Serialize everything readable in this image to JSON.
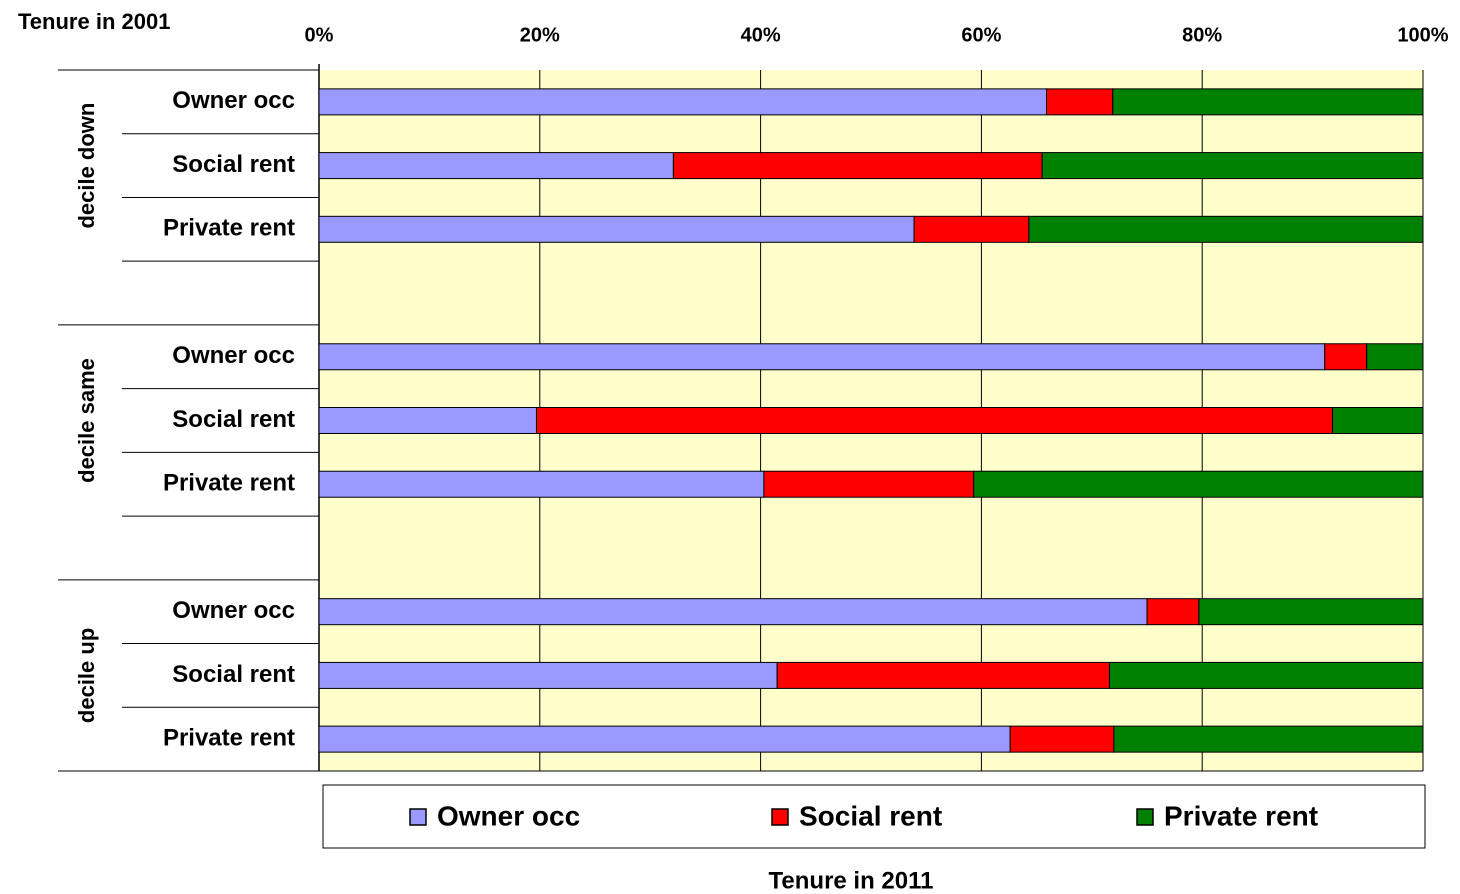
{
  "chart_data": {
    "type": "stacked-bar-horizontal",
    "y_axis_title": "Tenure in 2001",
    "x_axis_title": "Tenure in 2011",
    "groups": [
      "decile down",
      "decile same",
      "decile up"
    ],
    "categories": [
      "Owner occ",
      "Social rent",
      "Private rent",
      null,
      "Owner occ",
      "Social rent",
      "Private rent",
      null,
      "Owner occ",
      "Social rent",
      "Private rent"
    ],
    "series": [
      {
        "name": "Owner occ",
        "color": "#9999ff",
        "values": [
          65.9,
          32.1,
          53.9,
          null,
          91.1,
          19.7,
          40.3,
          null,
          75.0,
          41.5,
          62.6
        ]
      },
      {
        "name": "Social rent",
        "color": "#ff0000",
        "values": [
          6.0,
          33.4,
          10.4,
          null,
          3.8,
          72.1,
          19.0,
          null,
          4.7,
          30.1,
          9.4
        ]
      },
      {
        "name": "Private rent",
        "color": "#008000",
        "values": [
          28.1,
          34.5,
          35.7,
          null,
          5.1,
          8.2,
          40.7,
          null,
          20.3,
          28.4,
          28.0
        ]
      }
    ],
    "xlim": [
      0,
      100
    ],
    "xticks": [
      {
        "value": 0,
        "label": "0%"
      },
      {
        "value": 20,
        "label": "20%"
      },
      {
        "value": 40,
        "label": "40%"
      },
      {
        "value": 60,
        "label": "60%"
      },
      {
        "value": 80,
        "label": "80%"
      },
      {
        "value": 100,
        "label": "100%"
      }
    ],
    "grid": true,
    "plot_background": "#ffffcc",
    "legend": "bottom"
  }
}
